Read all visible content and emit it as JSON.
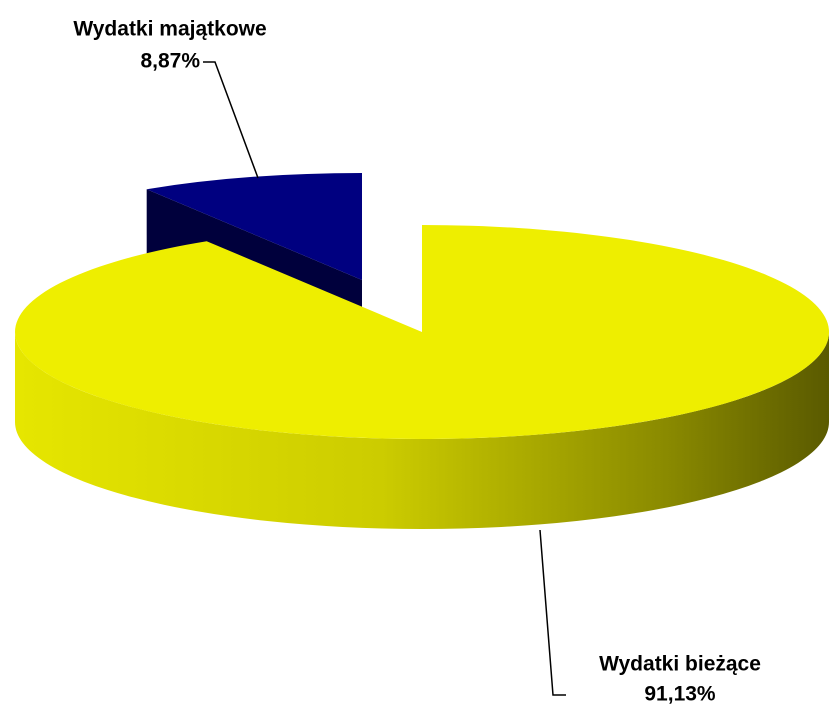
{
  "chart_data": {
    "type": "pie",
    "categories": [
      "Wydatki majątkowe",
      "Wydatki bieżące"
    ],
    "values": [
      8.87,
      91.13
    ],
    "value_labels": [
      "8,87%",
      "91,13%"
    ],
    "colors": [
      "#000080",
      "#eeee00"
    ]
  }
}
